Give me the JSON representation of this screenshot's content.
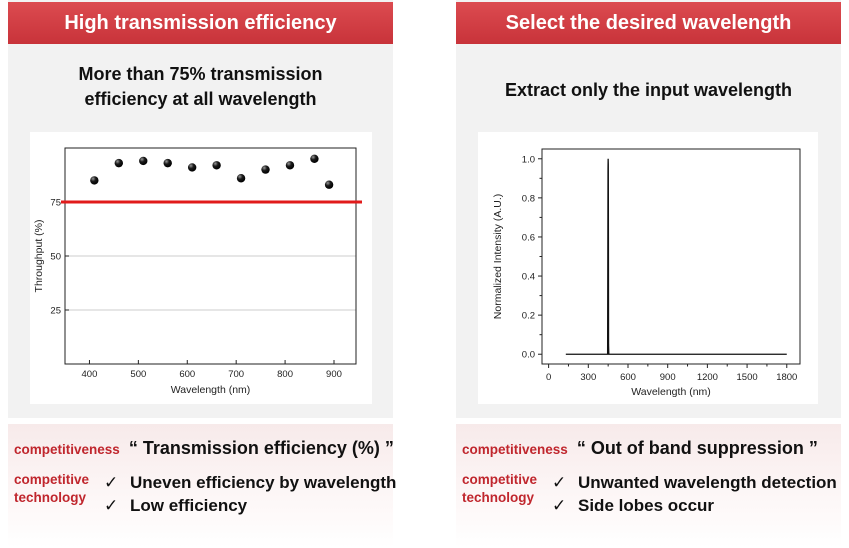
{
  "left": {
    "header": "High transmission efficiency",
    "subtitle_line1": "More than 75% transmission",
    "subtitle_line2": "efficiency at all wavelength",
    "competitiveness_tag": "competitiveness",
    "competitiveness_text": "“ Transmission  efficiency (%) ”",
    "tech_line1": "competitive",
    "tech_line2": "technology",
    "checks": [
      "Uneven efficiency by wavelength",
      "Low efficiency"
    ]
  },
  "right": {
    "header": "Select the desired wavelength",
    "subtitle": "Extract only the input wavelength",
    "competitiveness_tag": "competitiveness",
    "competitiveness_text": "“ Out of band suppression ”",
    "tech_line1": "competitive",
    "tech_line2": "technology",
    "checks": [
      "Unwanted wavelength detection",
      "Side lobes occur"
    ]
  },
  "check_symbol": "✓",
  "chart_data": [
    {
      "type": "scatter",
      "xlabel": "Wavelength (nm)",
      "ylabel": "Throughput (%)",
      "xlim": [
        350,
        945
      ],
      "ylim": [
        0,
        100
      ],
      "xticks": [
        400,
        500,
        600,
        700,
        800,
        900
      ],
      "yticks": [
        25,
        50,
        75
      ],
      "grid": true,
      "threshold": 75,
      "threshold_color": "#e11b1b",
      "x": [
        410,
        460,
        510,
        560,
        610,
        660,
        710,
        760,
        810,
        860,
        890
      ],
      "y": [
        85,
        93,
        94,
        93,
        91,
        92,
        86,
        90,
        92,
        95,
        83
      ]
    },
    {
      "type": "line",
      "xlabel": "Wavelength (nm)",
      "ylabel": "Normalized Intensity (A.U.)",
      "xlim": [
        -50,
        1900
      ],
      "ylim": [
        -0.05,
        1.05
      ],
      "xticks": [
        0,
        300,
        600,
        900,
        1200,
        1500,
        1800
      ],
      "yticks": [
        0.0,
        0.2,
        0.4,
        0.6,
        0.8,
        1.0
      ],
      "ytick_labels": [
        "0.0",
        "0.2",
        "0.4",
        "0.6",
        "0.8",
        "1.0"
      ],
      "x": [
        130,
        440,
        446,
        449,
        450,
        451,
        452,
        453,
        455,
        460,
        1800
      ],
      "y": [
        0,
        0,
        0,
        0.95,
        1.0,
        0.97,
        0.6,
        0.05,
        0,
        0,
        0
      ]
    }
  ]
}
